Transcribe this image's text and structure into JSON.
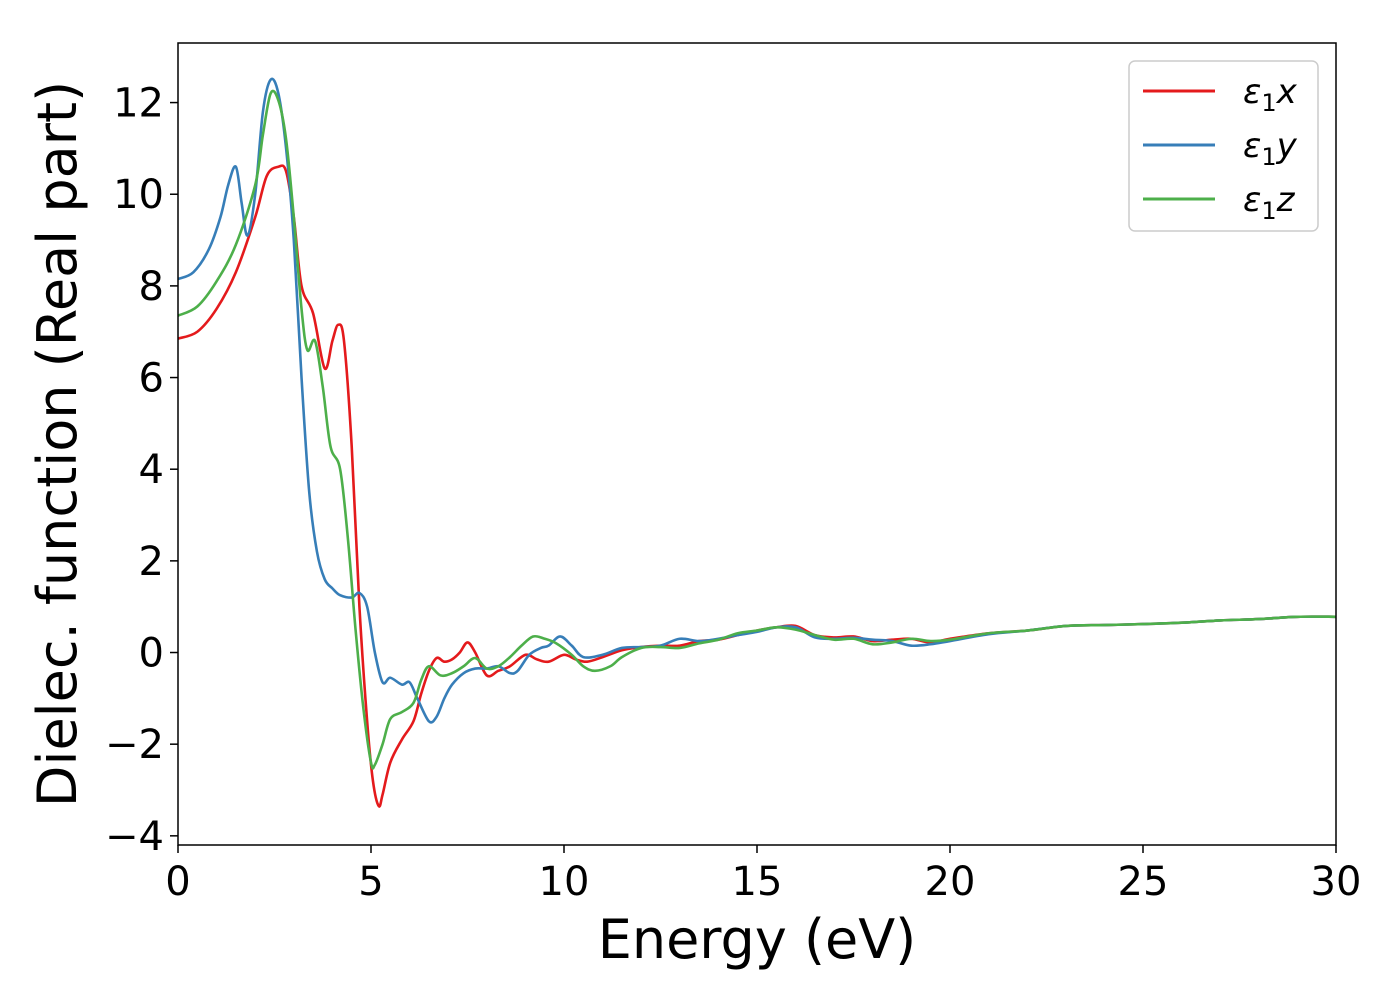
{
  "chart_data": {
    "type": "line",
    "title": "",
    "xlabel": "Energy (eV)",
    "ylabel": "Dielec. function (Real part)",
    "xlim": [
      0,
      30
    ],
    "ylim": [
      -4.2,
      13.3
    ],
    "xticks": [
      0,
      5,
      10,
      15,
      20,
      25,
      30
    ],
    "xtick_labels": [
      "0",
      "5",
      "10",
      "15",
      "20",
      "25",
      "30"
    ],
    "yticks": [
      -4,
      -2,
      0,
      2,
      4,
      6,
      8,
      10,
      12
    ],
    "ytick_labels": [
      "−4",
      "−2",
      "0",
      "2",
      "4",
      "6",
      "8",
      "10",
      "12"
    ],
    "grid": false,
    "legend_position": "top-right",
    "series": [
      {
        "name": "ε₁x",
        "legend_base": "ε",
        "legend_sub": "1",
        "legend_var": "x",
        "color": "#e41a1c",
        "points": [
          [
            0,
            6.85
          ],
          [
            0.5,
            7.0
          ],
          [
            1.0,
            7.5
          ],
          [
            1.5,
            8.3
          ],
          [
            2.0,
            9.5
          ],
          [
            2.3,
            10.4
          ],
          [
            2.6,
            10.6
          ],
          [
            2.8,
            10.5
          ],
          [
            3.0,
            9.5
          ],
          [
            3.2,
            8.0
          ],
          [
            3.5,
            7.4
          ],
          [
            3.8,
            6.2
          ],
          [
            4.0,
            6.8
          ],
          [
            4.15,
            7.15
          ],
          [
            4.3,
            6.8
          ],
          [
            4.5,
            4.5
          ],
          [
            4.7,
            1.0
          ],
          [
            4.9,
            -1.5
          ],
          [
            5.05,
            -2.8
          ],
          [
            5.2,
            -3.35
          ],
          [
            5.3,
            -3.1
          ],
          [
            5.5,
            -2.4
          ],
          [
            5.8,
            -1.9
          ],
          [
            6.1,
            -1.5
          ],
          [
            6.3,
            -0.9
          ],
          [
            6.5,
            -0.4
          ],
          [
            6.7,
            -0.12
          ],
          [
            6.9,
            -0.2
          ],
          [
            7.1,
            -0.15
          ],
          [
            7.3,
            0.0
          ],
          [
            7.5,
            0.22
          ],
          [
            7.7,
            0.0
          ],
          [
            8.0,
            -0.5
          ],
          [
            8.3,
            -0.4
          ],
          [
            8.6,
            -0.3
          ],
          [
            9.0,
            -0.05
          ],
          [
            9.3,
            -0.15
          ],
          [
            9.6,
            -0.2
          ],
          [
            10.0,
            -0.05
          ],
          [
            10.3,
            -0.15
          ],
          [
            10.6,
            -0.2
          ],
          [
            11.0,
            -0.1
          ],
          [
            11.5,
            0.05
          ],
          [
            12.0,
            0.12
          ],
          [
            12.5,
            0.15
          ],
          [
            13.0,
            0.15
          ],
          [
            13.5,
            0.25
          ],
          [
            14.0,
            0.28
          ],
          [
            14.5,
            0.38
          ],
          [
            15.0,
            0.48
          ],
          [
            15.5,
            0.55
          ],
          [
            16.0,
            0.58
          ],
          [
            16.5,
            0.38
          ],
          [
            17.0,
            0.33
          ],
          [
            17.5,
            0.35
          ],
          [
            18.0,
            0.25
          ],
          [
            18.5,
            0.28
          ],
          [
            19.0,
            0.3
          ],
          [
            19.5,
            0.22
          ],
          [
            20.0,
            0.3
          ],
          [
            21.0,
            0.42
          ],
          [
            22.0,
            0.48
          ],
          [
            23.0,
            0.58
          ],
          [
            24.0,
            0.6
          ],
          [
            25.0,
            0.62
          ],
          [
            26.0,
            0.65
          ],
          [
            27.0,
            0.7
          ],
          [
            28.0,
            0.73
          ],
          [
            29.0,
            0.78
          ],
          [
            30.0,
            0.78
          ]
        ]
      },
      {
        "name": "ε₁y",
        "legend_base": "ε",
        "legend_sub": "1",
        "legend_var": "y",
        "color": "#377eb8",
        "points": [
          [
            0,
            8.15
          ],
          [
            0.4,
            8.3
          ],
          [
            0.8,
            8.8
          ],
          [
            1.1,
            9.5
          ],
          [
            1.3,
            10.2
          ],
          [
            1.5,
            10.6
          ],
          [
            1.65,
            9.8
          ],
          [
            1.8,
            9.1
          ],
          [
            2.0,
            10.0
          ],
          [
            2.2,
            11.8
          ],
          [
            2.4,
            12.5
          ],
          [
            2.6,
            12.2
          ],
          [
            2.8,
            11.0
          ],
          [
            3.0,
            9.0
          ],
          [
            3.2,
            6.0
          ],
          [
            3.4,
            3.5
          ],
          [
            3.6,
            2.2
          ],
          [
            3.8,
            1.6
          ],
          [
            4.0,
            1.4
          ],
          [
            4.2,
            1.25
          ],
          [
            4.5,
            1.2
          ],
          [
            4.7,
            1.3
          ],
          [
            4.9,
            1.0
          ],
          [
            5.1,
            0.0
          ],
          [
            5.3,
            -0.65
          ],
          [
            5.5,
            -0.55
          ],
          [
            5.8,
            -0.7
          ],
          [
            6.0,
            -0.65
          ],
          [
            6.2,
            -1.0
          ],
          [
            6.5,
            -1.5
          ],
          [
            6.7,
            -1.4
          ],
          [
            6.9,
            -1.0
          ],
          [
            7.1,
            -0.7
          ],
          [
            7.4,
            -0.45
          ],
          [
            7.7,
            -0.35
          ],
          [
            8.0,
            -0.35
          ],
          [
            8.3,
            -0.3
          ],
          [
            8.6,
            -0.45
          ],
          [
            8.8,
            -0.4
          ],
          [
            9.1,
            -0.05
          ],
          [
            9.4,
            0.1
          ],
          [
            9.6,
            0.15
          ],
          [
            9.9,
            0.35
          ],
          [
            10.2,
            0.15
          ],
          [
            10.5,
            -0.1
          ],
          [
            11.0,
            -0.05
          ],
          [
            11.5,
            0.1
          ],
          [
            12.0,
            0.12
          ],
          [
            12.5,
            0.15
          ],
          [
            13.0,
            0.3
          ],
          [
            13.5,
            0.25
          ],
          [
            14.0,
            0.3
          ],
          [
            14.5,
            0.38
          ],
          [
            15.0,
            0.45
          ],
          [
            15.5,
            0.55
          ],
          [
            16.0,
            0.55
          ],
          [
            16.5,
            0.33
          ],
          [
            17.0,
            0.3
          ],
          [
            17.5,
            0.32
          ],
          [
            18.0,
            0.28
          ],
          [
            18.5,
            0.25
          ],
          [
            19.0,
            0.15
          ],
          [
            19.5,
            0.18
          ],
          [
            20.0,
            0.25
          ],
          [
            21.0,
            0.4
          ],
          [
            22.0,
            0.48
          ],
          [
            23.0,
            0.58
          ],
          [
            24.0,
            0.6
          ],
          [
            25.0,
            0.62
          ],
          [
            26.0,
            0.65
          ],
          [
            27.0,
            0.7
          ],
          [
            28.0,
            0.73
          ],
          [
            29.0,
            0.78
          ],
          [
            30.0,
            0.78
          ]
        ]
      },
      {
        "name": "ε₁z",
        "legend_base": "ε",
        "legend_sub": "1",
        "legend_var": "z",
        "color": "#4daf4a",
        "points": [
          [
            0,
            7.35
          ],
          [
            0.5,
            7.55
          ],
          [
            1.0,
            8.1
          ],
          [
            1.5,
            8.9
          ],
          [
            2.0,
            10.2
          ],
          [
            2.2,
            11.3
          ],
          [
            2.4,
            12.2
          ],
          [
            2.6,
            12.05
          ],
          [
            2.8,
            11.2
          ],
          [
            3.0,
            9.5
          ],
          [
            3.2,
            7.5
          ],
          [
            3.35,
            6.6
          ],
          [
            3.55,
            6.8
          ],
          [
            3.75,
            5.8
          ],
          [
            3.95,
            4.5
          ],
          [
            4.2,
            4.0
          ],
          [
            4.4,
            2.5
          ],
          [
            4.6,
            0.5
          ],
          [
            4.8,
            -1.2
          ],
          [
            5.0,
            -2.4
          ],
          [
            5.1,
            -2.45
          ],
          [
            5.3,
            -2.0
          ],
          [
            5.5,
            -1.45
          ],
          [
            5.8,
            -1.3
          ],
          [
            6.1,
            -1.1
          ],
          [
            6.3,
            -0.6
          ],
          [
            6.5,
            -0.3
          ],
          [
            6.8,
            -0.5
          ],
          [
            7.1,
            -0.45
          ],
          [
            7.4,
            -0.3
          ],
          [
            7.7,
            -0.12
          ],
          [
            8.0,
            -0.35
          ],
          [
            8.3,
            -0.3
          ],
          [
            8.6,
            -0.1
          ],
          [
            8.9,
            0.15
          ],
          [
            9.2,
            0.35
          ],
          [
            9.5,
            0.3
          ],
          [
            9.8,
            0.2
          ],
          [
            10.2,
            -0.05
          ],
          [
            10.5,
            -0.3
          ],
          [
            10.8,
            -0.4
          ],
          [
            11.2,
            -0.3
          ],
          [
            11.5,
            -0.1
          ],
          [
            12.0,
            0.1
          ],
          [
            12.5,
            0.12
          ],
          [
            13.0,
            0.1
          ],
          [
            13.5,
            0.2
          ],
          [
            14.0,
            0.28
          ],
          [
            14.5,
            0.42
          ],
          [
            15.0,
            0.48
          ],
          [
            15.5,
            0.55
          ],
          [
            16.0,
            0.5
          ],
          [
            16.5,
            0.38
          ],
          [
            17.0,
            0.28
          ],
          [
            17.5,
            0.3
          ],
          [
            18.0,
            0.18
          ],
          [
            18.5,
            0.22
          ],
          [
            19.0,
            0.3
          ],
          [
            19.5,
            0.25
          ],
          [
            20.0,
            0.28
          ],
          [
            21.0,
            0.42
          ],
          [
            22.0,
            0.48
          ],
          [
            23.0,
            0.58
          ],
          [
            24.0,
            0.6
          ],
          [
            25.0,
            0.62
          ],
          [
            26.0,
            0.65
          ],
          [
            27.0,
            0.7
          ],
          [
            28.0,
            0.73
          ],
          [
            29.0,
            0.78
          ],
          [
            30.0,
            0.78
          ]
        ]
      }
    ]
  }
}
